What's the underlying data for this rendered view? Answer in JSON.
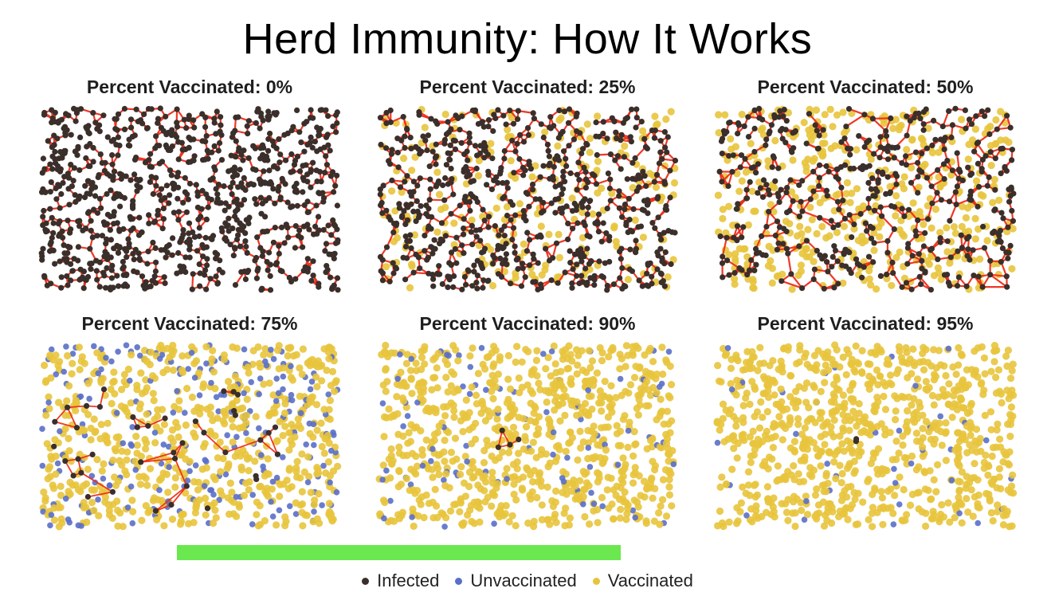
{
  "title": "Herd Immunity: How It Works",
  "progress": 1.0,
  "colors": {
    "infected": "#3a2f2a",
    "unvaccinated": "#5a6fc8",
    "vaccinated": "#e8c43c",
    "edge": "#ee2d1a",
    "progress_fill": "#6be84f"
  },
  "legend": [
    {
      "label": "Infected",
      "color_key": "infected"
    },
    {
      "label": "Unvaccinated",
      "color_key": "unvaccinated"
    },
    {
      "label": "Vaccinated",
      "color_key": "vaccinated"
    }
  ],
  "chart_data": [
    {
      "type": "scatter",
      "title": "Percent Vaccinated: 0%",
      "percent_vaccinated": 0,
      "infection_spread": "widespread"
    },
    {
      "type": "scatter",
      "title": "Percent Vaccinated: 25%",
      "percent_vaccinated": 25,
      "infection_spread": "widespread"
    },
    {
      "type": "scatter",
      "title": "Percent Vaccinated: 50%",
      "percent_vaccinated": 50,
      "infection_spread": "widespread"
    },
    {
      "type": "scatter",
      "title": "Percent Vaccinated: 75%",
      "percent_vaccinated": 75,
      "infection_spread": "local cluster"
    },
    {
      "type": "scatter",
      "title": "Percent Vaccinated: 90%",
      "percent_vaccinated": 90,
      "infection_spread": "few"
    },
    {
      "type": "scatter",
      "title": "Percent Vaccinated: 95%",
      "percent_vaccinated": 95,
      "infection_spread": "few"
    }
  ]
}
